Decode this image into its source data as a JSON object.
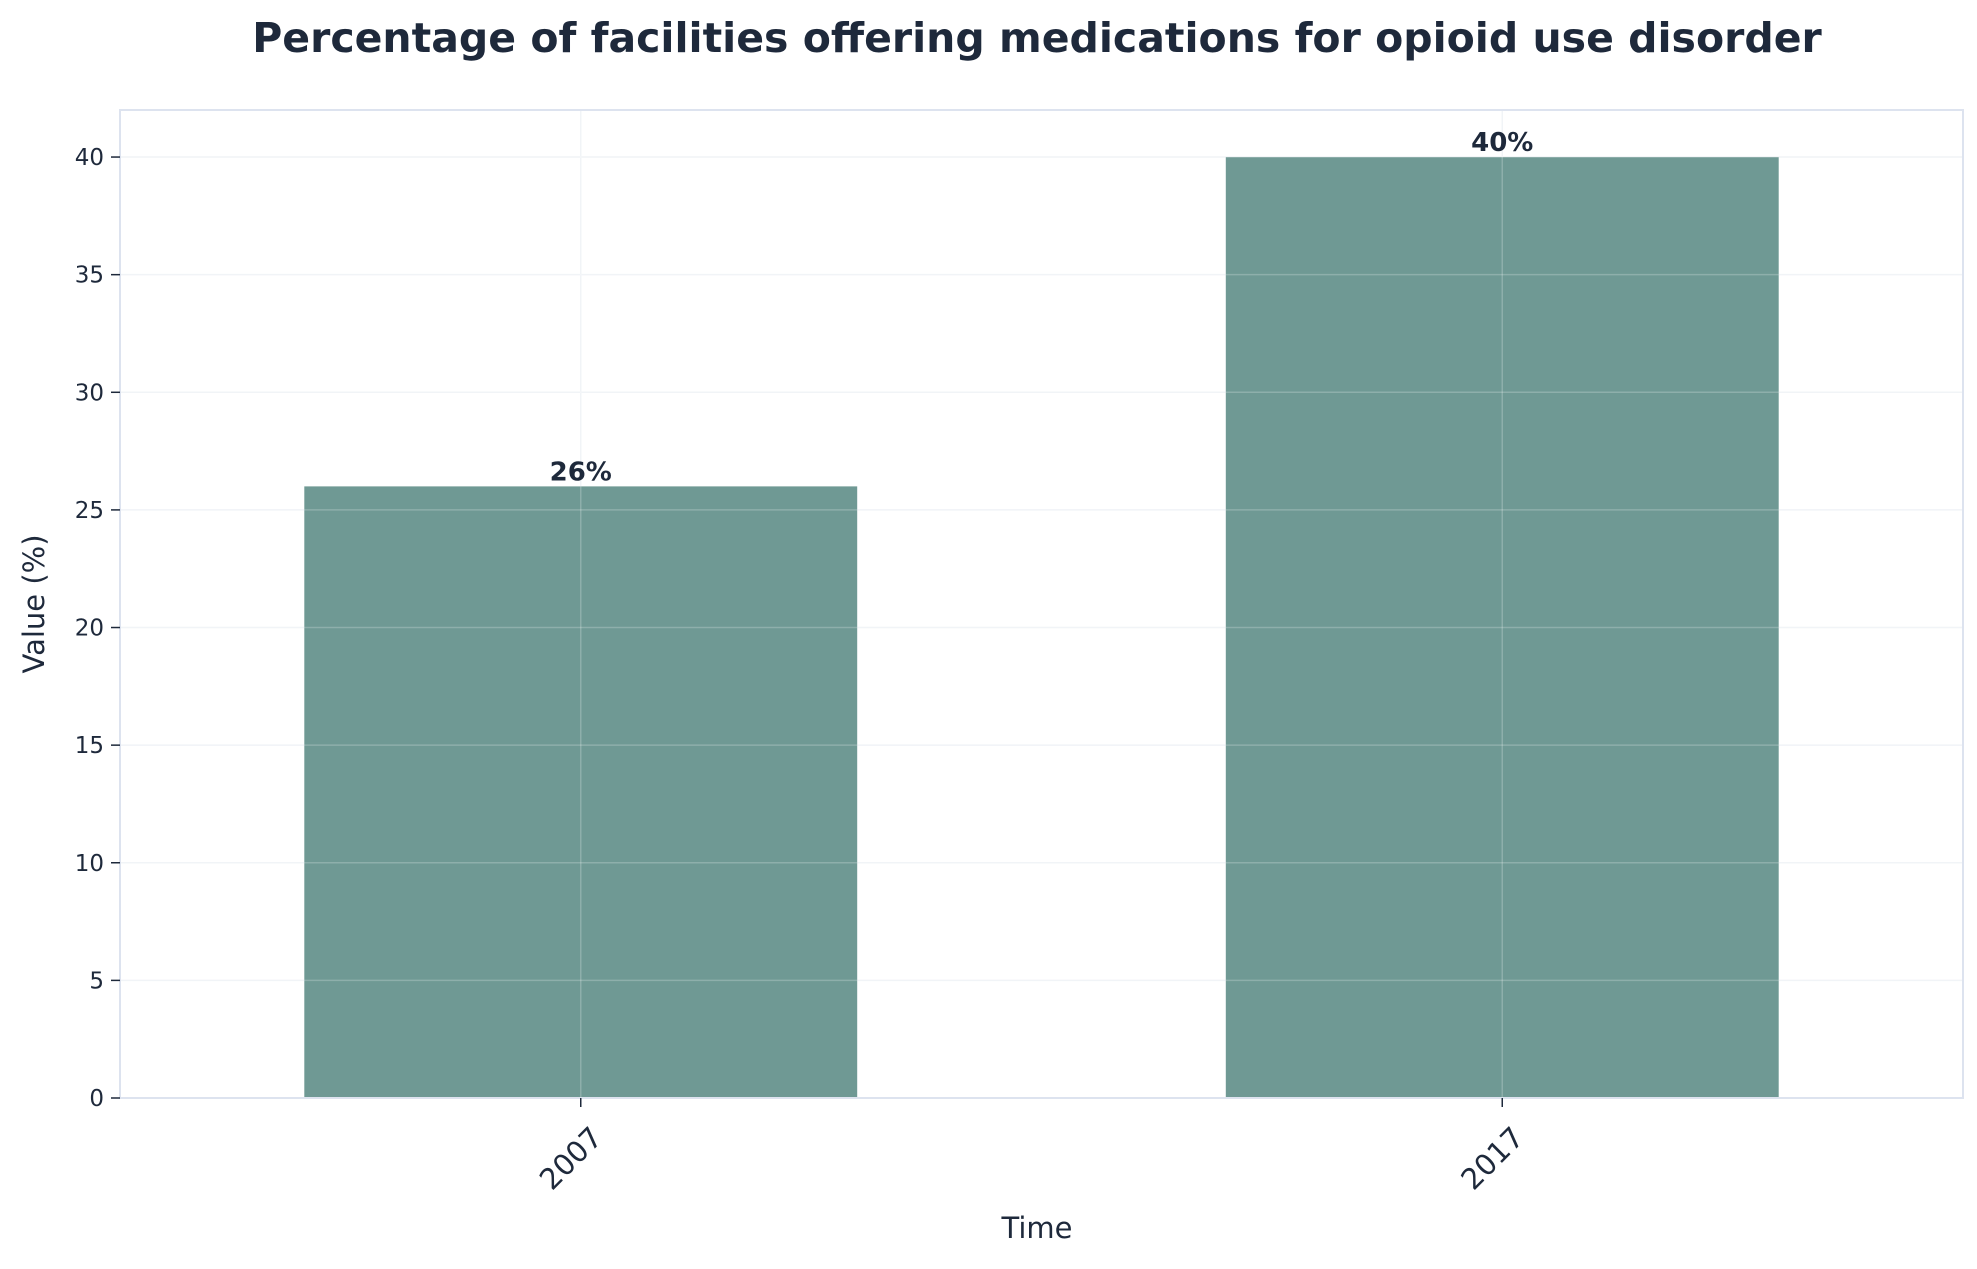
{
  "chart_data": {
    "type": "bar",
    "title": "Percentage of facilities offering medications for opioid use disorder",
    "xlabel": "Time",
    "ylabel": "Value (%)",
    "categories": [
      "2007",
      "2017"
    ],
    "values": [
      26,
      40
    ],
    "data_labels": [
      "26%",
      "40%"
    ],
    "ylim": [
      0,
      42
    ],
    "yticks": [
      0,
      5,
      10,
      15,
      20,
      25,
      30,
      35,
      40
    ],
    "grid": true,
    "legend": "none",
    "colors": {
      "bar": "#6f9994",
      "text": "#1e293b",
      "axis": "#dde3ef",
      "grid": "#eef1f5"
    }
  }
}
